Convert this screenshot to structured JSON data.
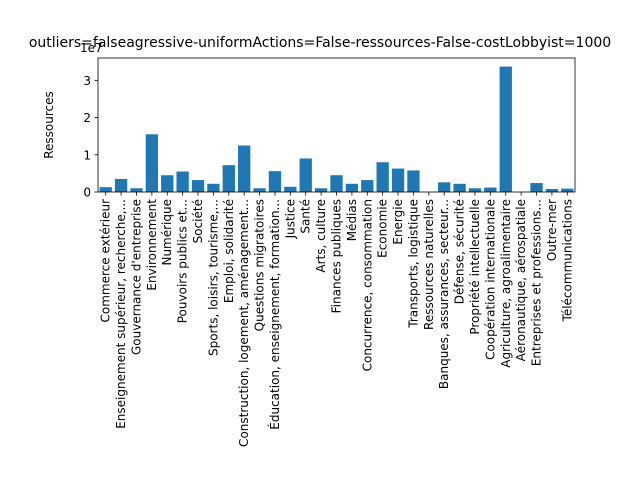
{
  "chart_data": {
    "type": "bar",
    "title": "outliers=falseagressive-uniformActions=False-ressources-False-costLobbyist=1000",
    "xlabel": "",
    "ylabel": "Ressources",
    "y_offset_label": "1e7",
    "ylim": [
      0,
      3.6
    ],
    "yticks": [
      0,
      1,
      2,
      3
    ],
    "ytick_labels": [
      "0",
      "1",
      "2",
      "3"
    ],
    "bar_color": "#1f77b4",
    "categories": [
      "Commerce extérieur",
      "Enseignement supérieur, recherche,...",
      "Gouvernance d'entreprise",
      "Environnement",
      "Numérique",
      "Pouvoirs publics et...",
      "Société",
      "Sports, loisirs, tourisme,...",
      "Emploi, solidarité",
      "Construction, logement, aménagement...",
      "Questions migratoires",
      "Éducation, enseignement, formation...",
      "Justice",
      "Santé",
      "Arts, culture",
      "Finances publiques",
      "Médias",
      "Concurrence, consommation",
      "Economie",
      "Energie",
      "Transports, logistique",
      "Ressources naturelles",
      "Banques, assurances, secteur...",
      "Défense, sécurité",
      "Propriété intellectuelle",
      "Coopération internationale",
      "Agriculture, agroalimentaire",
      "Aéronautique, aérospatiale",
      "Entreprises et professions...",
      "Outre-mer",
      "Télécommunications"
    ],
    "values": [
      0.13,
      0.35,
      0.1,
      1.55,
      0.45,
      0.55,
      0.32,
      0.22,
      0.72,
      1.25,
      0.1,
      0.56,
      0.14,
      0.9,
      0.1,
      0.45,
      0.22,
      0.32,
      0.8,
      0.63,
      0.58,
      0.0,
      0.26,
      0.22,
      0.1,
      0.12,
      3.37,
      0.0,
      0.24,
      0.08,
      0.09
    ]
  }
}
